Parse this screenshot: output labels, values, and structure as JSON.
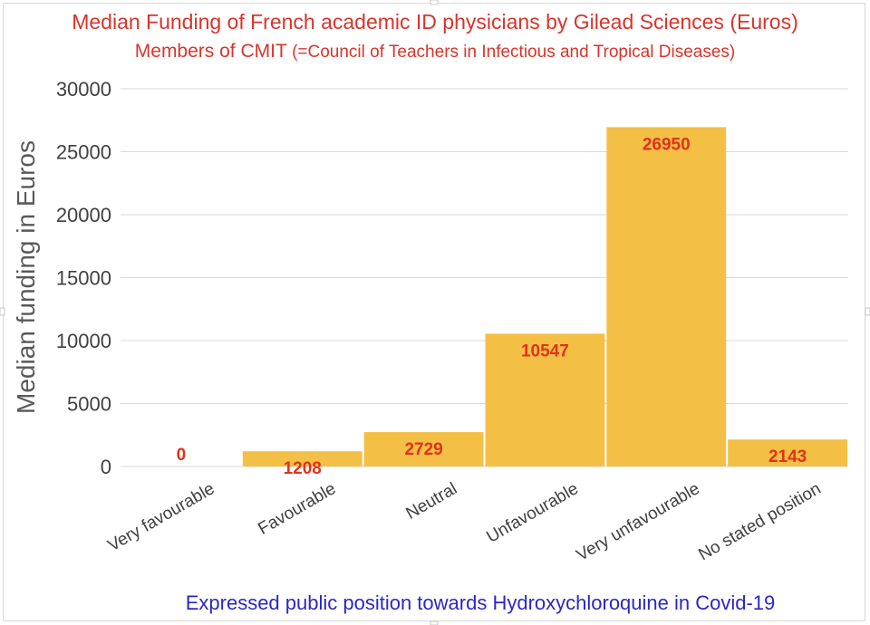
{
  "chart_data": {
    "type": "bar",
    "title_line1": "Median Funding of French academic ID physicians by Gilead Sciences (Euros)",
    "title_line2_main": "Members  of CMIT",
    "title_line2_small": " (=Council of Teachers in Infectious and Tropical Diseases)",
    "xlabel": "Expressed public position towards Hydroxychloroquine in Covid-19",
    "ylabel": "Median funding  in Euros",
    "categories": [
      "Very favourable",
      "Favourable",
      "Neutral",
      "Unfavourable",
      "Very unfavourable",
      "No stated position"
    ],
    "values": [
      0,
      1208,
      2729,
      10547,
      26950,
      2143
    ],
    "data_labels": [
      "0",
      "1208",
      "2729",
      "10547",
      "26950",
      "2143"
    ],
    "ylim": [
      0,
      30000
    ],
    "yticks": [
      "0",
      "5000",
      "10000",
      "15000",
      "20000",
      "25000",
      "30000"
    ],
    "grid": true,
    "legend": "none",
    "bar_color": "#f4bf45",
    "label_color": "#e0331c"
  }
}
